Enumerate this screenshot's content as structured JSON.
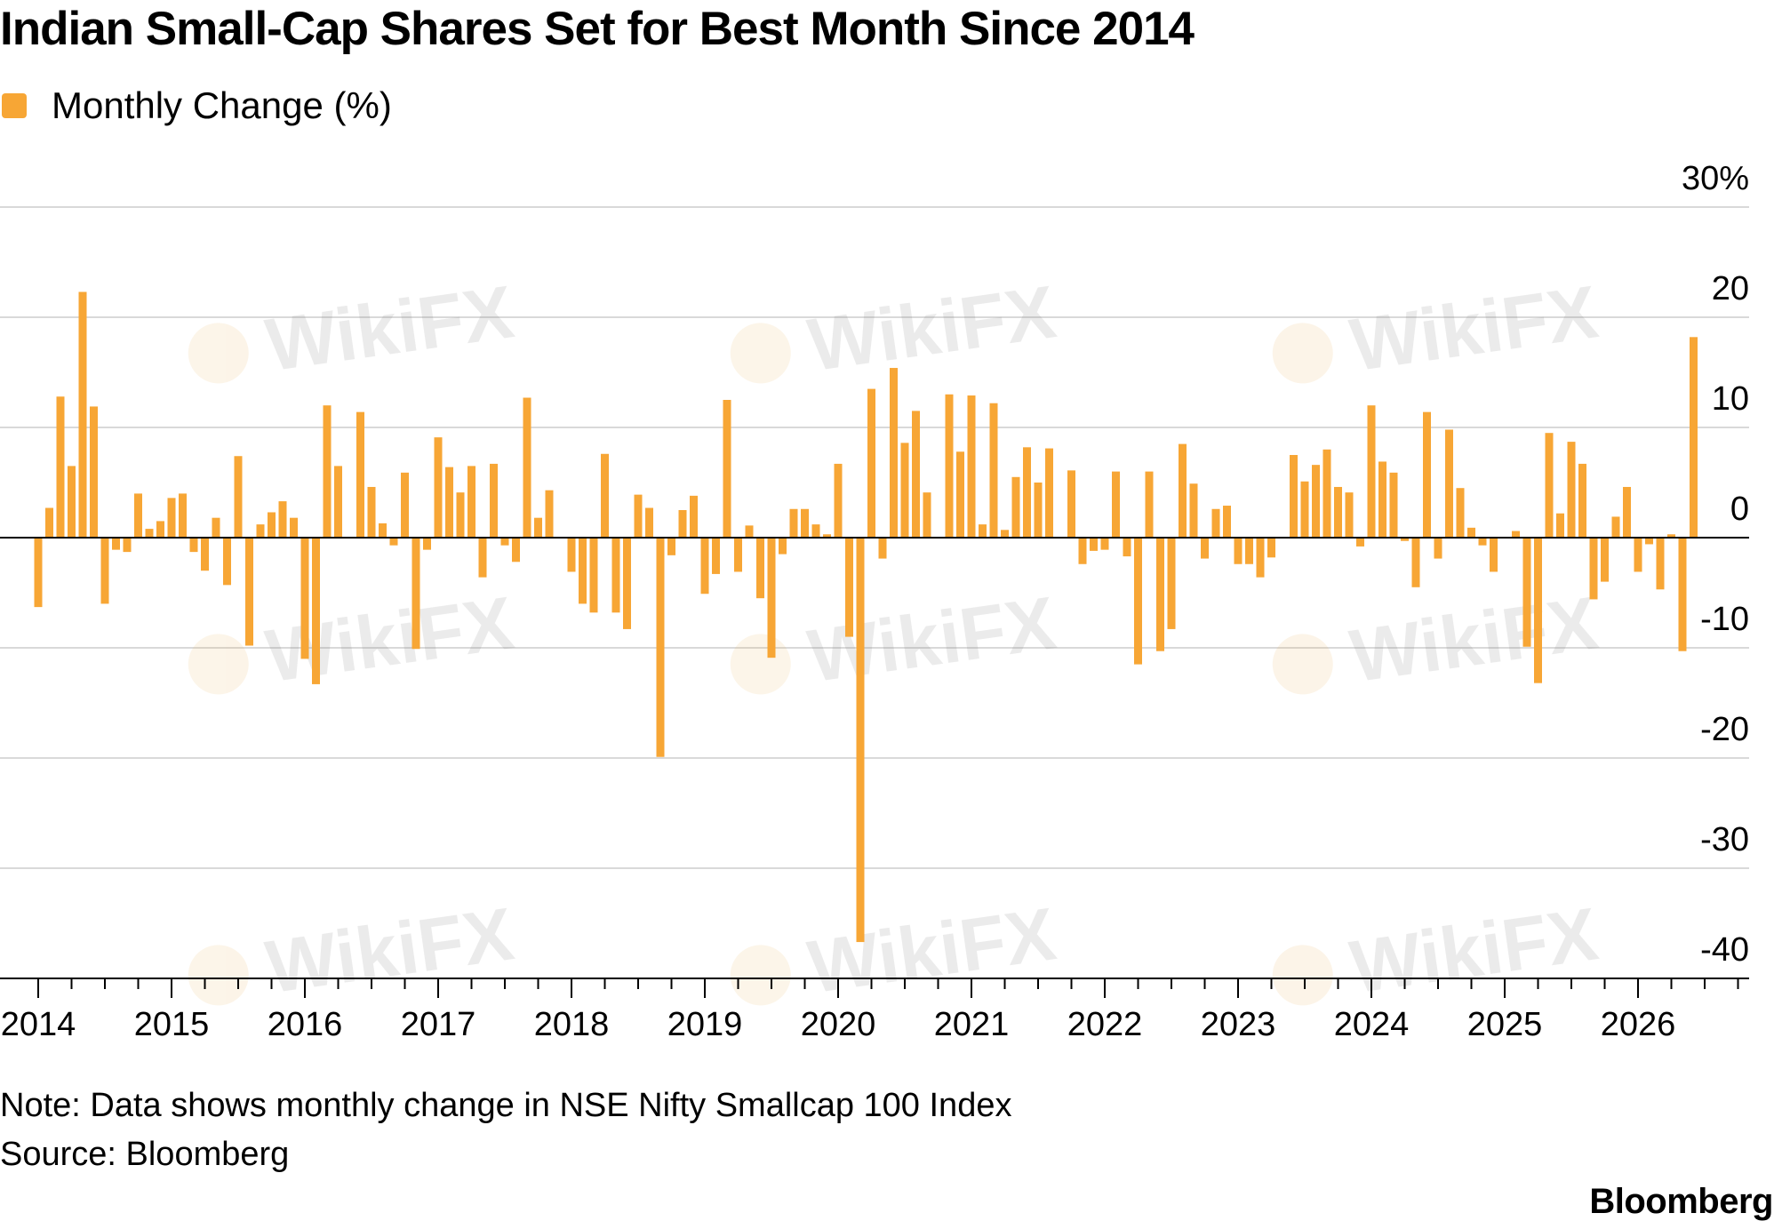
{
  "chart_data": {
    "type": "bar",
    "title": "Indian Small-Cap Shares Set for Best Month Since 2014",
    "legend": [
      {
        "label": "Monthly Change (%)",
        "color": "#f7a635"
      }
    ],
    "xlabel": "",
    "ylabel": "Monthly Change (%)",
    "ylim": [
      -40,
      30
    ],
    "y_ticks": [
      30,
      20,
      10,
      0,
      -10,
      -20,
      -30,
      -40
    ],
    "y_tick_labels": [
      "30%",
      "20",
      "10",
      "0",
      "-10",
      "-20",
      "-30",
      "-40"
    ],
    "x_tick_labels": [
      "2014",
      "2015",
      "2016",
      "2017",
      "2018",
      "2019",
      "2020",
      "2021",
      "2022",
      "2023",
      "2024",
      "2025",
      "2026"
    ],
    "start": "Jan 2014",
    "series": [
      {
        "name": "Monthly Change (%)",
        "values": [
          -6.3,
          2.7,
          12.8,
          6.5,
          22.3,
          11.9,
          -6.0,
          -1.1,
          -1.3,
          4.0,
          0.8,
          1.5,
          3.6,
          4.0,
          -1.3,
          -3.0,
          1.8,
          -4.3,
          7.4,
          -9.8,
          1.2,
          2.3,
          3.3,
          1.8,
          -11.0,
          -13.3,
          12.0,
          6.5,
          0.0,
          11.4,
          4.6,
          1.3,
          -0.7,
          5.9,
          -10.1,
          -1.1,
          9.1,
          6.4,
          4.1,
          6.5,
          -3.6,
          6.7,
          -0.7,
          -2.2,
          12.7,
          1.8,
          4.3,
          0.0,
          -3.1,
          -6.0,
          -6.8,
          7.6,
          -6.8,
          -8.3,
          3.9,
          2.7,
          -19.9,
          -1.6,
          2.5,
          3.8,
          -5.1,
          -3.3,
          12.5,
          -3.1,
          1.1,
          -5.5,
          -10.9,
          -1.5,
          2.6,
          2.6,
          1.2,
          0.3,
          6.7,
          -9.0,
          -36.7,
          13.5,
          -1.9,
          15.4,
          8.6,
          11.5,
          4.1,
          0.0,
          13.0,
          7.8,
          12.9,
          1.2,
          12.2,
          0.7,
          5.5,
          8.2,
          5.0,
          8.1,
          0.0,
          6.1,
          -2.4,
          -1.2,
          -1.1,
          6.0,
          -1.7,
          -11.5,
          6.0,
          -10.3,
          -8.3,
          8.5,
          4.9,
          -1.9,
          2.6,
          2.9,
          -2.4,
          -2.4,
          -3.6,
          -1.8,
          0.0,
          7.5,
          5.1,
          6.6,
          8.0,
          4.6,
          4.1,
          -0.8,
          12.0,
          6.9,
          5.9,
          -0.3,
          -4.5,
          11.4,
          -1.9,
          9.8,
          4.5,
          0.9,
          -0.7,
          -3.1,
          0.0,
          0.6,
          -9.9,
          -13.2,
          9.5,
          2.2,
          8.7,
          6.7,
          -5.6,
          -4.0,
          1.9,
          4.6,
          -3.1,
          -0.6,
          -4.7,
          0.3,
          -10.3,
          18.2
        ]
      }
    ]
  },
  "note": "Note: Data shows monthly change in NSE Nifty Smallcap 100 Index",
  "source": "Source: Bloomberg",
  "brand": "Bloomberg",
  "watermark": "WikiFX",
  "colors": {
    "bar": "#f7a635",
    "grid": "#d9d9d9",
    "zero_line": "#000000",
    "axis": "#000000"
  }
}
